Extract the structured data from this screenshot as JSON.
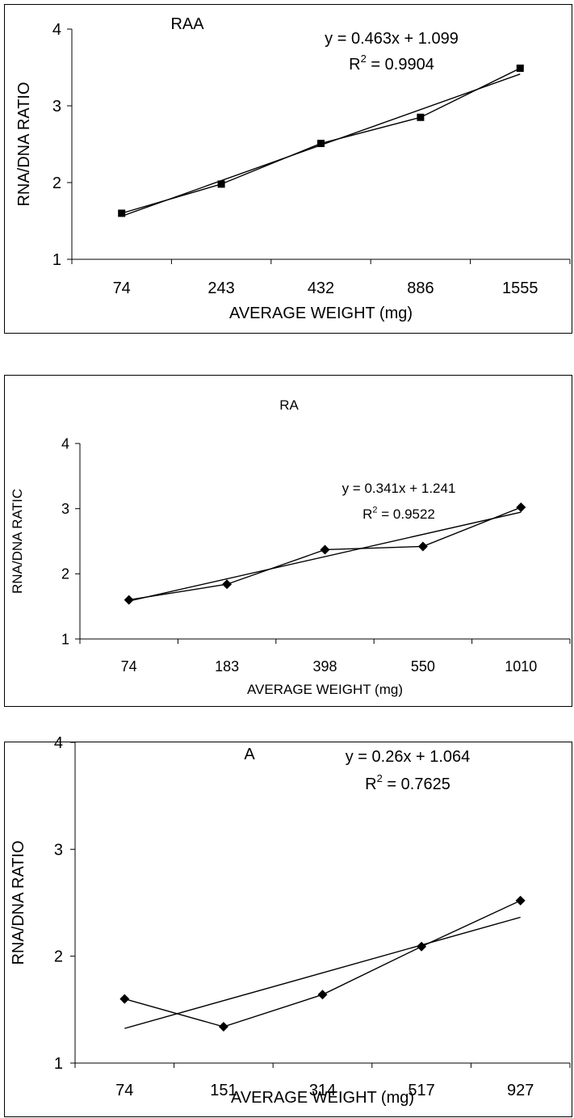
{
  "chart_data": [
    {
      "type": "line",
      "title": "RAA",
      "xlabel": "AVERAGE WEIGHT (mg)",
      "ylabel": "RNA/DNA RATIO",
      "categories": [
        "74",
        "243",
        "432",
        "886",
        "1555"
      ],
      "ylim": [
        1,
        4
      ],
      "yticks": [
        "1",
        "2",
        "3",
        "4"
      ],
      "marker": "square",
      "series": [
        {
          "values": [
            1.6,
            1.98,
            2.51,
            2.85,
            3.49
          ]
        }
      ],
      "trendline": {
        "slope": 0.463,
        "intercept": 1.099
      },
      "equation": "y = 0.463x + 1.099",
      "r2_prefix": "R",
      "r2_sup": "2",
      "r2_value": " = 0.9904",
      "grid": false
    },
    {
      "type": "line",
      "title": "RA",
      "xlabel": "AVERAGE WEIGHT (mg)",
      "ylabel": "RNA/DNA RATIC",
      "categories": [
        "74",
        "183",
        "398",
        "550",
        "1010"
      ],
      "ylim": [
        1,
        4
      ],
      "yticks": [
        "1",
        "2",
        "3",
        "4"
      ],
      "marker": "diamond",
      "series": [
        {
          "values": [
            1.6,
            1.84,
            2.37,
            2.42,
            3.02
          ]
        }
      ],
      "trendline": {
        "slope": 0.341,
        "intercept": 1.241
      },
      "equation": "y = 0.341x + 1.241",
      "r2_prefix": "R",
      "r2_sup": "2",
      "r2_value": " = 0.9522",
      "grid": false
    },
    {
      "type": "line",
      "title": "A",
      "xlabel": "AVERAGE WEIGHT (mg)",
      "ylabel": "RNA/DNA RATIO",
      "categories": [
        "74",
        "151",
        "314",
        "517",
        "927"
      ],
      "ylim": [
        1,
        4
      ],
      "yticks": [
        "1",
        "2",
        "3",
        "4"
      ],
      "marker": "diamond",
      "series": [
        {
          "values": [
            1.6,
            1.34,
            1.64,
            2.09,
            2.52
          ]
        }
      ],
      "trendline": {
        "slope": 0.26,
        "intercept": 1.064
      },
      "equation": "y = 0.26x + 1.064",
      "r2_prefix": "R",
      "r2_sup": "2",
      "r2_value": " = 0.7625",
      "grid": false
    }
  ]
}
